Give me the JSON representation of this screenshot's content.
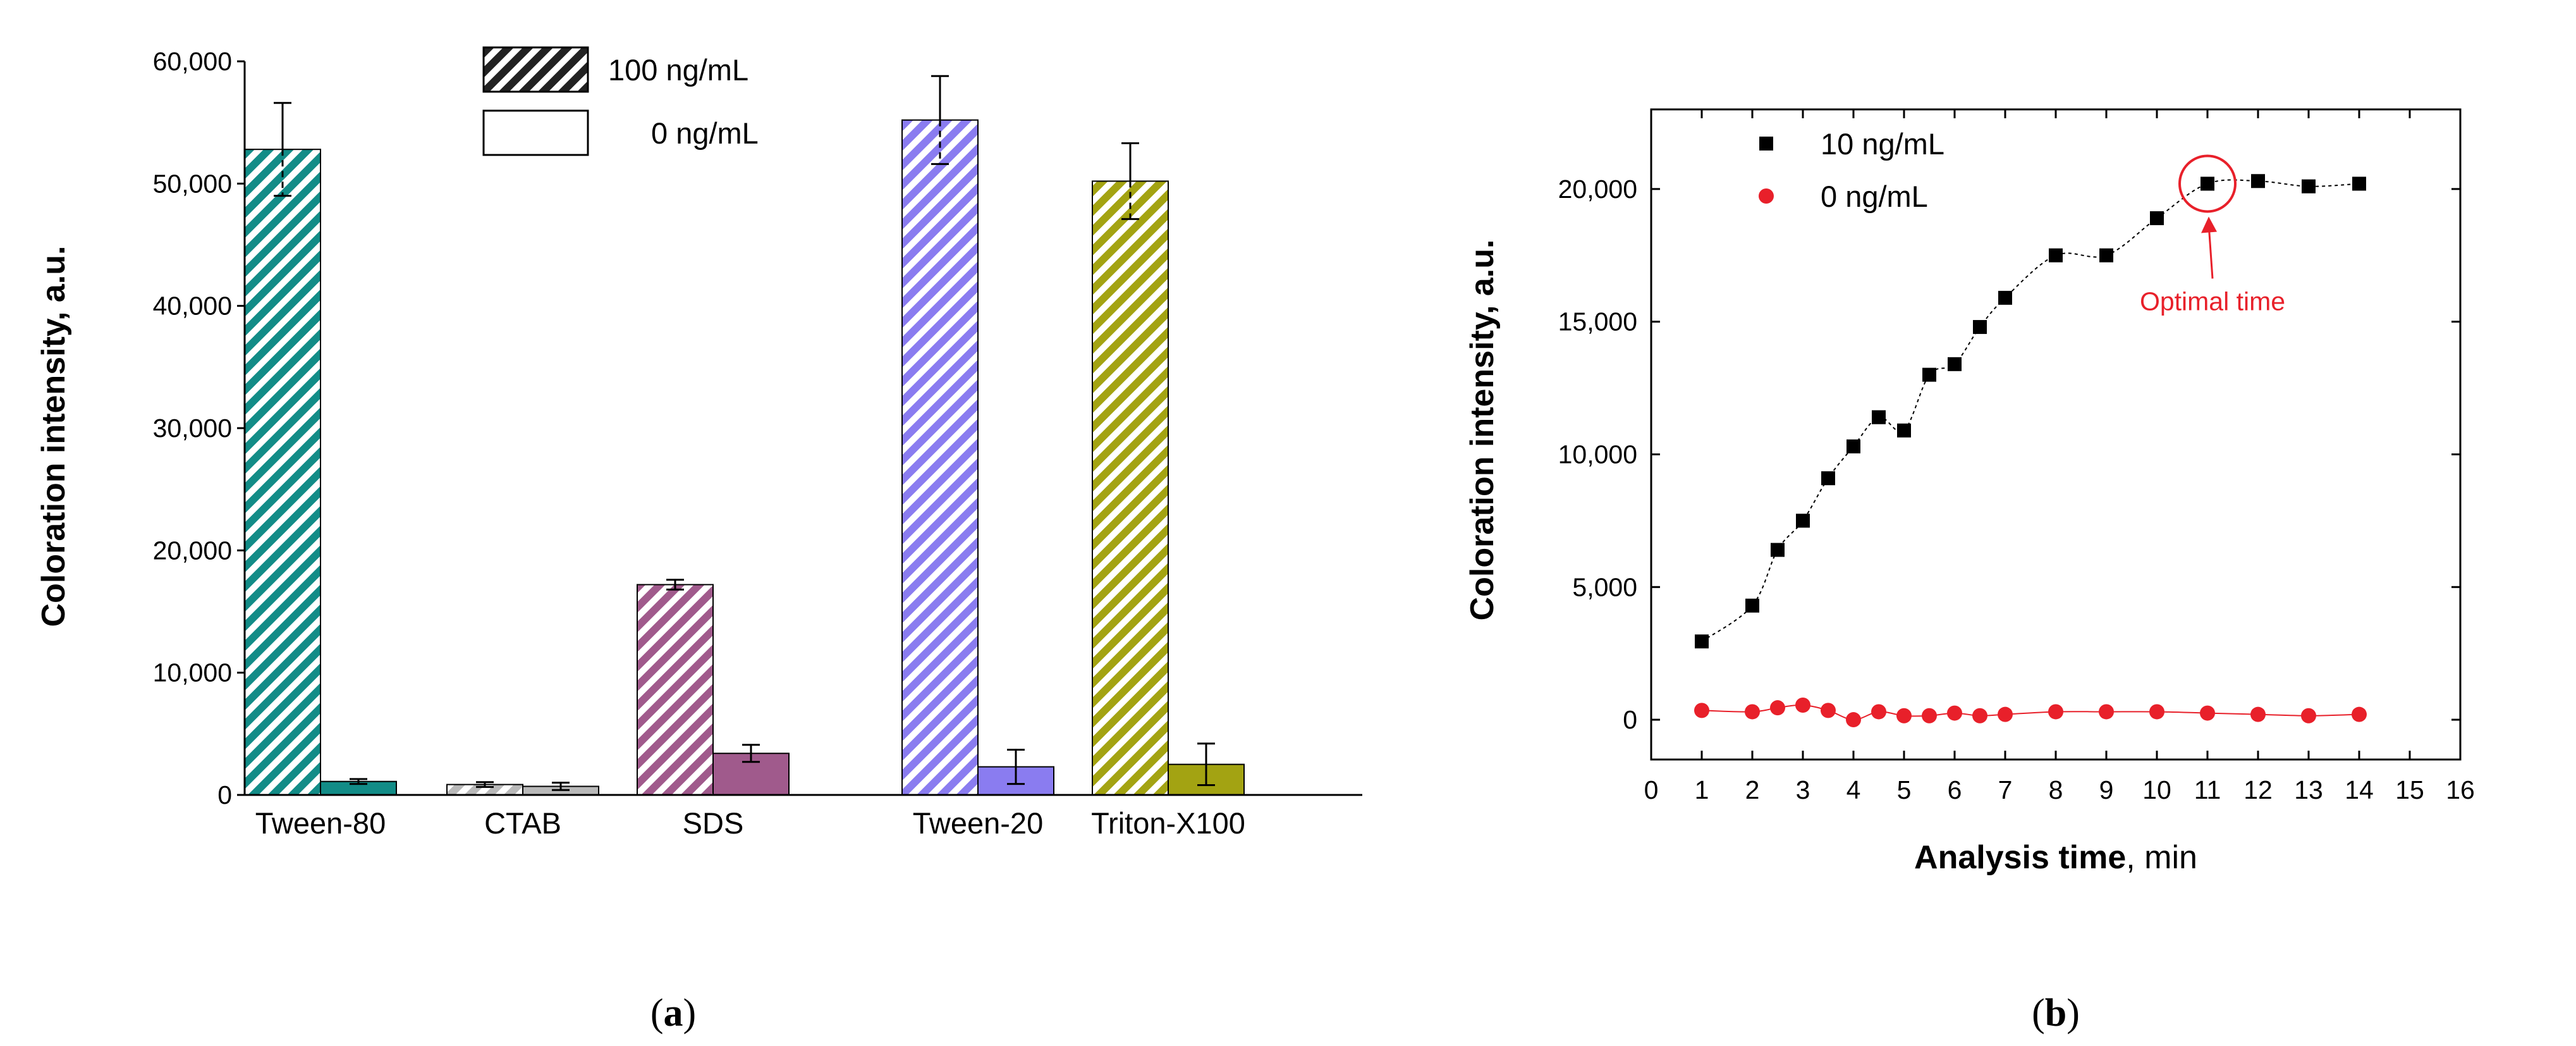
{
  "chart_data": [
    {
      "type": "bar",
      "panel_label_parts": [
        "(",
        "a",
        ")"
      ],
      "categories": [
        "Tween-80",
        "CTAB",
        "SDS",
        "Tween-20",
        "Triton-X100"
      ],
      "colors": [
        "#128c87",
        "#b9b9b9",
        "#a05a8c",
        "#8a7cf0",
        "#a3a312"
      ],
      "series": [
        {
          "name": "100 ng/mL",
          "hatched": true,
          "values": [
            52800,
            850,
            17200,
            55200,
            50200
          ],
          "errors": [
            3800,
            200,
            400,
            3600,
            3100
          ]
        },
        {
          "name": "0 ng/mL",
          "hatched": false,
          "values": [
            1100,
            700,
            3400,
            2300,
            2500
          ],
          "errors": [
            200,
            300,
            700,
            1400,
            1700
          ]
        }
      ],
      "xlabel": "",
      "ylabel": "Coloration intensity, a.u.",
      "ylim": [
        0,
        60000
      ],
      "yticks": [
        0,
        10000,
        20000,
        30000,
        40000,
        50000,
        60000
      ],
      "ytick_labels": [
        "0",
        "10,000",
        "20,000",
        "30,000",
        "40,000",
        "50,000",
        "60,000"
      ],
      "legend": {
        "position": "top-center",
        "entries": [
          "100 ng/mL",
          "0 ng/mL"
        ]
      }
    },
    {
      "type": "scatter",
      "panel_label_parts": [
        "(",
        "b",
        ")"
      ],
      "xlabel_parts": [
        "Analysis time",
        ", min"
      ],
      "ylabel": "Coloration intensity, a.u.",
      "xlim": [
        0,
        16
      ],
      "ylim": [
        -1500,
        23000
      ],
      "xticks": [
        0,
        1,
        2,
        3,
        4,
        5,
        6,
        7,
        8,
        9,
        10,
        11,
        12,
        13,
        14,
        15,
        16
      ],
      "xtick_labels": [
        "0",
        "1",
        "2",
        "3",
        "4",
        "5",
        "6",
        "7",
        "8",
        "9",
        "10",
        "11",
        "12",
        "13",
        "14",
        "15",
        "16"
      ],
      "yticks": [
        0,
        5000,
        10000,
        15000,
        20000
      ],
      "ytick_labels": [
        "0",
        "5,000",
        "10,000",
        "15,000",
        "20,000"
      ],
      "series": [
        {
          "name": "10 ng/mL",
          "marker": "square",
          "color": "#000000",
          "x": [
            1,
            2,
            2.5,
            3,
            3.5,
            4,
            4.5,
            5,
            5.5,
            6,
            6.5,
            7,
            8,
            9,
            10,
            11,
            12,
            13,
            14
          ],
          "y": [
            2950,
            4300,
            6400,
            7500,
            9100,
            10300,
            11400,
            10900,
            13000,
            13400,
            14800,
            15900,
            17500,
            17500,
            18900,
            20200,
            20300,
            20100,
            20200
          ]
        },
        {
          "name": "0 ng/mL",
          "marker": "circle",
          "color": "#e8202a",
          "x": [
            1,
            2,
            2.5,
            3,
            3.5,
            4,
            4.5,
            5,
            5.5,
            6,
            6.5,
            7,
            8,
            9,
            10,
            11,
            12,
            13,
            14
          ],
          "y": [
            350,
            300,
            450,
            550,
            350,
            0,
            300,
            150,
            150,
            250,
            150,
            200,
            300,
            300,
            300,
            250,
            200,
            150,
            200
          ]
        }
      ],
      "legend": {
        "position": "top-left",
        "entries": [
          "10 ng/mL",
          "0 ng/mL"
        ]
      },
      "annotation": {
        "text": "Optimal time",
        "x": 11,
        "y": 20200
      }
    }
  ]
}
